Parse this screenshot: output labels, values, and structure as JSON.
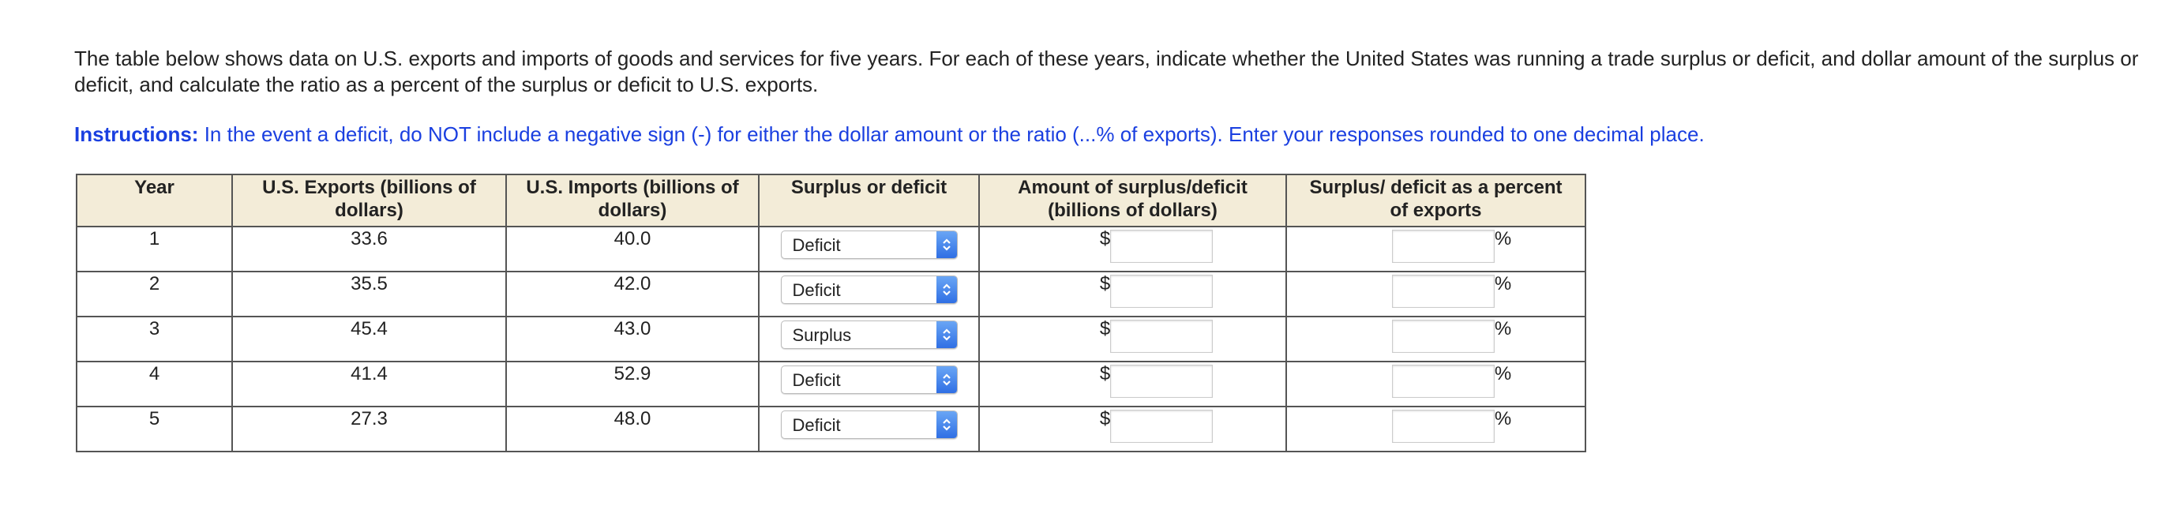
{
  "intro": "The table below shows data on U.S. exports and imports of goods and services for five years. For each of these years, indicate whether the United States was running a trade surplus or deficit, and dollar amount of the surplus or deficit, and calculate the ratio as a percent of the surplus or deficit to U.S. exports.",
  "instructions": {
    "label": "Instructions:",
    "text": "In the event a deficit, do NOT include a negative sign (-) for either the dollar amount or the ratio (...% of exports). Enter your responses rounded to one decimal place."
  },
  "table": {
    "headers": [
      "Year",
      "U.S. Exports (billions of dollars)",
      "U.S. Imports (billions of dollars)",
      "Surplus or deficit",
      "Amount of surplus/deficit (billions of dollars)",
      "Surplus/ deficit as a percent of exports"
    ],
    "currency_symbol": "$",
    "percent_symbol": "%",
    "rows": [
      [
        "1",
        "33.6",
        "40.0",
        "Deficit"
      ],
      [
        "2",
        "35.5",
        "42.0",
        "Deficit"
      ],
      [
        "3",
        "45.4",
        "43.0",
        "Surplus"
      ],
      [
        "4",
        "41.4",
        "52.9",
        "Deficit"
      ],
      [
        "5",
        "27.3",
        "48.0",
        "Deficit"
      ]
    ]
  }
}
